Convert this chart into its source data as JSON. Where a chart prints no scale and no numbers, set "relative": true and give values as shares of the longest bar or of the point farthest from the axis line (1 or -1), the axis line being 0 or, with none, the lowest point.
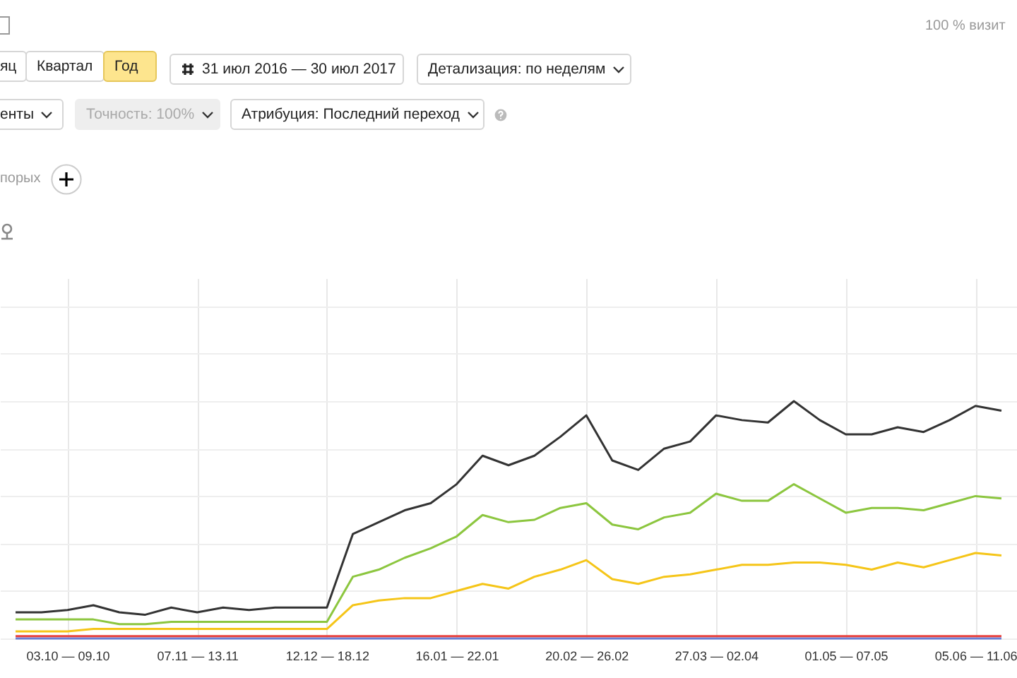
{
  "chart_data": {
    "type": "line",
    "relative": true,
    "grid": true,
    "annotations": [
      "яц",
      "Квартал",
      "Год",
      "31 июл 2016 — 30 июл 2017",
      "Детализация: по неделям",
      "енты",
      "Точность: 100%",
      "Атрибуция: Последний переход",
      "порых",
      "100 % визит"
    ],
    "categories": [
      null,
      null,
      "03.10 — 09.10",
      null,
      null,
      null,
      null,
      "07.11 — 13.11",
      null,
      null,
      null,
      null,
      "12.12 — 18.12",
      null,
      null,
      null,
      null,
      "16.01 — 22.01",
      null,
      null,
      null,
      null,
      "20.02 — 26.02",
      null,
      null,
      null,
      null,
      "27.03 — 02.04",
      null,
      null,
      null,
      null,
      "01.05 — 07.05",
      null,
      null,
      null,
      null,
      "05.06 — 11.06",
      null
    ],
    "series": [
      {
        "color": "#6a7fd6",
        "values": [
          0,
          0,
          0,
          0,
          0,
          0,
          0,
          0,
          0,
          0,
          0,
          0,
          0,
          0,
          0,
          0,
          0,
          0,
          0,
          0,
          0,
          0,
          0,
          0,
          0,
          0,
          0,
          0,
          0,
          0,
          0,
          0,
          0,
          0,
          0,
          0,
          0,
          0,
          0
        ]
      },
      {
        "color": "#e8413c",
        "values": [
          0.01,
          0.01,
          0.01,
          0.01,
          0.01,
          0.01,
          0.01,
          0.01,
          0.01,
          0.01,
          0.01,
          0.01,
          0.01,
          0.01,
          0.01,
          0.01,
          0.01,
          0.01,
          0.01,
          0.01,
          0.01,
          0.01,
          0.01,
          0.01,
          0.01,
          0.01,
          0.01,
          0.01,
          0.01,
          0.01,
          0.01,
          0.01,
          0.01,
          0.01,
          0.01,
          0.01,
          0.01,
          0.01,
          0.01
        ]
      },
      {
        "color": "#f5c518",
        "values": [
          0.03,
          0.03,
          0.03,
          0.04,
          0.04,
          0.04,
          0.04,
          0.04,
          0.04,
          0.04,
          0.04,
          0.04,
          0.04,
          0.14,
          0.16,
          0.17,
          0.17,
          0.2,
          0.23,
          0.21,
          0.26,
          0.29,
          0.33,
          0.25,
          0.23,
          0.26,
          0.27,
          0.29,
          0.31,
          0.31,
          0.32,
          0.32,
          0.31,
          0.29,
          0.32,
          0.3,
          0.33,
          0.36,
          0.35
        ]
      },
      {
        "color": "#8cc63f",
        "values": [
          0.08,
          0.08,
          0.08,
          0.08,
          0.06,
          0.06,
          0.07,
          0.07,
          0.07,
          0.07,
          0.07,
          0.07,
          0.07,
          0.26,
          0.29,
          0.34,
          0.38,
          0.43,
          0.52,
          0.49,
          0.5,
          0.55,
          0.57,
          0.48,
          0.46,
          0.51,
          0.53,
          0.61,
          0.58,
          0.58,
          0.65,
          0.59,
          0.53,
          0.55,
          0.55,
          0.54,
          0.57,
          0.6,
          0.59
        ]
      },
      {
        "color": "#333333",
        "values": [
          0.11,
          0.11,
          0.12,
          0.14,
          0.11,
          0.1,
          0.13,
          0.11,
          0.13,
          0.12,
          0.13,
          0.13,
          0.13,
          0.44,
          0.49,
          0.54,
          0.57,
          0.65,
          0.77,
          0.73,
          0.77,
          0.85,
          0.94,
          0.75,
          0.71,
          0.8,
          0.83,
          0.94,
          0.92,
          0.91,
          1,
          0.92,
          0.86,
          0.86,
          0.89,
          0.87,
          0.92,
          0.98,
          0.96
        ]
      }
    ]
  }
}
